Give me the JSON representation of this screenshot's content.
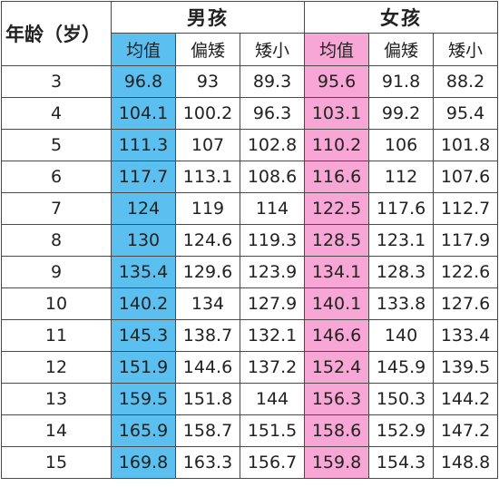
{
  "table": {
    "age_header": "年龄（岁）",
    "groups": [
      {
        "label": "男孩",
        "color": "#5bbfef"
      },
      {
        "label": "女孩",
        "color": "#f7a6d6"
      }
    ],
    "subheaders": [
      "均值",
      "偏矮",
      "矮小",
      "均值",
      "偏矮",
      "矮小"
    ],
    "rows": [
      {
        "age": "3",
        "boy": [
          "96.8",
          "93",
          "89.3"
        ],
        "girl": [
          "95.6",
          "91.8",
          "88.2"
        ]
      },
      {
        "age": "4",
        "boy": [
          "104.1",
          "100.2",
          "96.3"
        ],
        "girl": [
          "103.1",
          "99.2",
          "95.4"
        ]
      },
      {
        "age": "5",
        "boy": [
          "111.3",
          "107",
          "102.8"
        ],
        "girl": [
          "110.2",
          "106",
          "101.8"
        ]
      },
      {
        "age": "6",
        "boy": [
          "117.7",
          "113.1",
          "108.6"
        ],
        "girl": [
          "116.6",
          "112",
          "107.6"
        ]
      },
      {
        "age": "7",
        "boy": [
          "124",
          "119",
          "114"
        ],
        "girl": [
          "122.5",
          "117.6",
          "112.7"
        ]
      },
      {
        "age": "8",
        "boy": [
          "130",
          "124.6",
          "119.3"
        ],
        "girl": [
          "128.5",
          "123.1",
          "117.9"
        ]
      },
      {
        "age": "9",
        "boy": [
          "135.4",
          "129.6",
          "123.9"
        ],
        "girl": [
          "134.1",
          "128.3",
          "122.6"
        ]
      },
      {
        "age": "10",
        "boy": [
          "140.2",
          "134",
          "127.9"
        ],
        "girl": [
          "140.1",
          "133.8",
          "127.6"
        ]
      },
      {
        "age": "11",
        "boy": [
          "145.3",
          "138.7",
          "132.1"
        ],
        "girl": [
          "146.6",
          "140",
          "133.4"
        ]
      },
      {
        "age": "12",
        "boy": [
          "151.9",
          "144.6",
          "137.2"
        ],
        "girl": [
          "152.4",
          "145.9",
          "139.5"
        ]
      },
      {
        "age": "13",
        "boy": [
          "159.5",
          "151.8",
          "144"
        ],
        "girl": [
          "156.3",
          "150.3",
          "144.2"
        ]
      },
      {
        "age": "14",
        "boy": [
          "165.9",
          "158.7",
          "151.5"
        ],
        "girl": [
          "158.6",
          "152.9",
          "147.2"
        ]
      },
      {
        "age": "15",
        "boy": [
          "169.8",
          "163.3",
          "156.7"
        ],
        "girl": [
          "159.8",
          "154.3",
          "148.8"
        ]
      }
    ]
  }
}
